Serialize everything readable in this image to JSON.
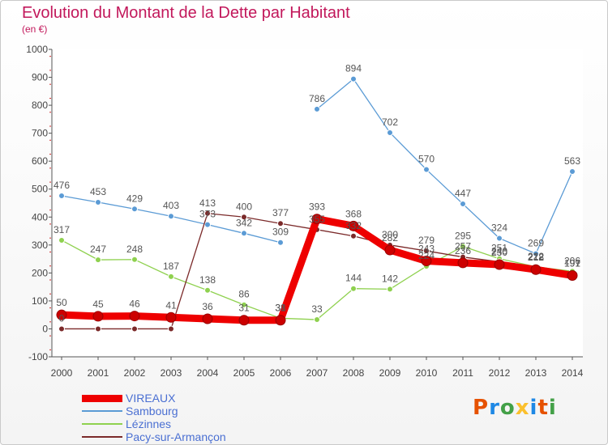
{
  "title": "Evolution du Montant de la Dette par Habitant",
  "subtitle": "(en €)",
  "logo": {
    "text": "Proxiti",
    "colors": [
      "#e65100",
      "#1e88e5",
      "#43a047",
      "#fbc02d",
      "#1e88e5",
      "#e65100",
      "#43a047"
    ]
  },
  "chart_data": {
    "type": "line",
    "title": "Evolution du Montant de la Dette par Habitant",
    "ylabel": "(en €)",
    "xlabel": "",
    "x": [
      "2000",
      "2001",
      "2002",
      "2003",
      "2004",
      "2005",
      "2006",
      "2007",
      "2008",
      "2009",
      "2010",
      "2011",
      "2012",
      "2013",
      "2014"
    ],
    "ylim": [
      -100,
      1000
    ],
    "yticks": [
      -100,
      0,
      100,
      200,
      300,
      400,
      500,
      600,
      700,
      800,
      900,
      1000
    ],
    "grid": false,
    "legend": "bottom-left",
    "series": [
      {
        "name": "VIREAUX",
        "color": "#ee0000",
        "emphasis": true,
        "values": [
          50,
          45,
          46,
          41,
          36,
          31,
          31,
          393,
          368,
          282,
          243,
          236,
          230,
          212,
          191
        ],
        "labels": [
          "50",
          "45",
          "46",
          "41",
          "36",
          "31",
          "31",
          "393",
          "368",
          "282",
          "243",
          "236",
          "230",
          "212",
          "191"
        ]
      },
      {
        "name": "Sambourg",
        "color": "#5b9bd5",
        "emphasis": false,
        "values": [
          476,
          453,
          429,
          403,
          373,
          342,
          309,
          786,
          894,
          702,
          570,
          447,
          324,
          269,
          563
        ],
        "labels": [
          "476",
          "453",
          "429",
          "403",
          "373",
          "342",
          "309",
          "786",
          "894",
          "702",
          "570",
          "447",
          "324",
          "269",
          "563"
        ]
      },
      {
        "name": "Lézinnes",
        "color": "#8fd14f",
        "emphasis": false,
        "values": [
          317,
          247,
          248,
          187,
          138,
          86,
          38,
          33,
          144,
          142,
          224,
          295,
          251,
          222,
          206
        ],
        "labels": [
          "317",
          "247",
          "248",
          "187",
          "138",
          "86",
          "38",
          "33",
          "144",
          "142",
          "224",
          "295",
          "251",
          "222",
          "206"
        ]
      },
      {
        "name": "Pacy-sur-Armançon",
        "color": "#7b2a2a",
        "emphasis": false,
        "values": [
          0,
          0,
          0,
          0,
          413,
          400,
          377,
          355,
          332,
          300,
          279,
          257,
          240,
          218,
          197
        ],
        "labels": [
          "0",
          "",
          "",
          "",
          "413",
          "400",
          "377",
          "355",
          "332",
          "300",
          "279",
          "257",
          "240",
          "218",
          "197"
        ]
      }
    ]
  }
}
